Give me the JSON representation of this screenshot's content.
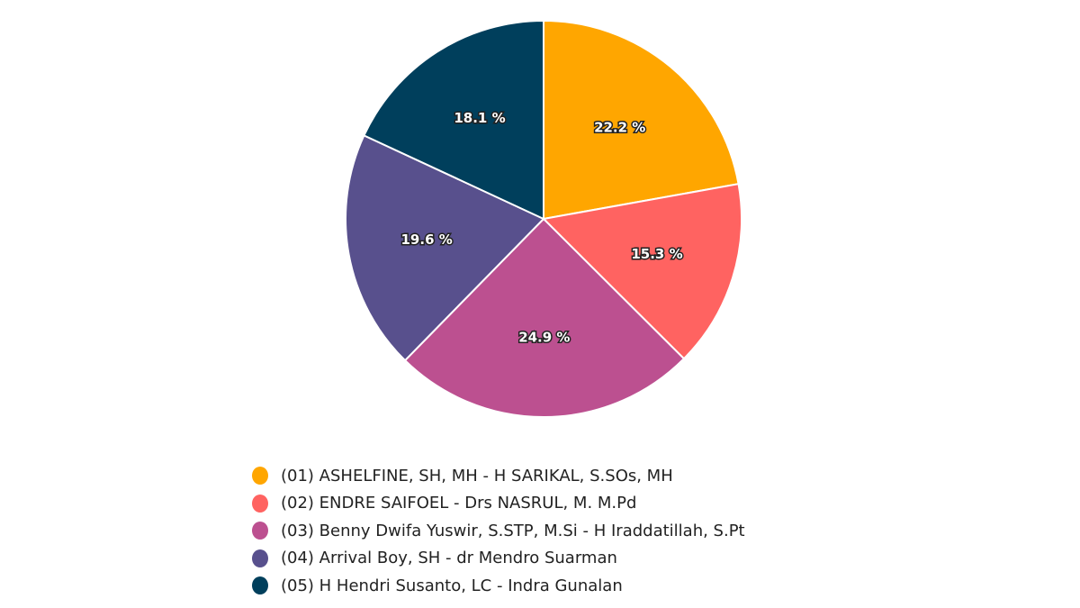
{
  "chart_data": {
    "type": "pie",
    "start_angle": "top, clockwise",
    "legend_position": "bottom",
    "series": [
      {
        "name": "(01) ASHELFINE, SH, MH - H SARIKAL, S.SOs, MH",
        "value": 22.2,
        "label": "22.2 %",
        "color": "#ffa600"
      },
      {
        "name": "(02) ENDRE SAIFOEL - Drs NASRUL, M. M.Pd",
        "value": 15.3,
        "label": "15.3 %",
        "color": "#ff6361"
      },
      {
        "name": "(03) Benny Dwifa Yuswir, S.STP, M.Si - H Iraddatillah, S.Pt",
        "value": 24.9,
        "label": "24.9 %",
        "color": "#bc5090"
      },
      {
        "name": "(04) Arrival Boy, SH - dr Mendro Suarman",
        "value": 19.6,
        "label": "19.6 %",
        "color": "#58508d"
      },
      {
        "name": "(05) H Hendri Susanto, LC - Indra Gunalan",
        "value": 18.1,
        "label": "18.1 %",
        "color": "#003f5c"
      }
    ]
  }
}
